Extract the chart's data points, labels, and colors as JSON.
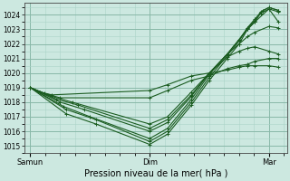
{
  "bg_color": "#cce8e0",
  "grid_major_color": "#88b8a8",
  "grid_minor_color": "#aad4c8",
  "line_color": "#1a5c20",
  "title": "Pression niveau de la mer( hPa )",
  "ylim": [
    1014.5,
    1024.8
  ],
  "yticks": [
    1015,
    1016,
    1017,
    1018,
    1019,
    1020,
    1021,
    1022,
    1023,
    1024
  ],
  "xlim": [
    -0.05,
    2.15
  ],
  "xlabels": [
    "Samun",
    "Dim",
    "Mar"
  ],
  "xpositions": [
    0.0,
    1.0,
    2.0
  ],
  "lines": [
    {
      "x": [
        0.0,
        0.3,
        0.55,
        1.0,
        1.15,
        1.35,
        1.5,
        1.65,
        1.75,
        1.82,
        1.88,
        1.93,
        2.0,
        2.08
      ],
      "y": [
        1019.0,
        1017.2,
        1016.5,
        1015.1,
        1015.8,
        1017.8,
        1019.5,
        1021.0,
        1022.0,
        1023.0,
        1023.5,
        1024.1,
        1024.4,
        1024.2
      ]
    },
    {
      "x": [
        0.0,
        0.3,
        0.55,
        1.0,
        1.15,
        1.35,
        1.5,
        1.65,
        1.75,
        1.82,
        1.88,
        1.93,
        2.0,
        2.08
      ],
      "y": [
        1019.0,
        1017.5,
        1016.8,
        1015.3,
        1016.0,
        1018.0,
        1019.7,
        1021.2,
        1022.2,
        1023.1,
        1023.6,
        1024.2,
        1024.5,
        1024.3
      ]
    },
    {
      "x": [
        0.0,
        0.28,
        0.5,
        1.0,
        1.15,
        1.35,
        1.5,
        1.65,
        1.75,
        1.82,
        1.88,
        1.95,
        2.0,
        2.08
      ],
      "y": [
        1019.0,
        1017.7,
        1017.0,
        1015.5,
        1016.2,
        1018.2,
        1019.9,
        1021.3,
        1022.3,
        1023.1,
        1023.7,
        1024.3,
        1024.5,
        1024.3
      ]
    },
    {
      "x": [
        0.0,
        0.25,
        0.45,
        1.0,
        1.15,
        1.35,
        1.5,
        1.65,
        1.75,
        1.82,
        1.88,
        2.0,
        2.08
      ],
      "y": [
        1019.0,
        1018.0,
        1017.5,
        1016.0,
        1016.6,
        1018.4,
        1020.0,
        1021.3,
        1022.3,
        1023.0,
        1023.5,
        1024.4,
        1023.5
      ]
    },
    {
      "x": [
        0.0,
        0.22,
        0.4,
        1.0,
        1.15,
        1.35,
        1.5,
        1.65,
        1.75,
        1.82,
        1.88,
        2.0,
        2.08
      ],
      "y": [
        1019.0,
        1018.2,
        1017.8,
        1016.2,
        1016.8,
        1018.5,
        1020.0,
        1021.3,
        1022.0,
        1022.5,
        1022.8,
        1023.2,
        1023.1
      ]
    },
    {
      "x": [
        0.0,
        0.18,
        0.35,
        1.0,
        1.15,
        1.35,
        1.5,
        1.65,
        1.75,
        1.82,
        1.88,
        2.0,
        2.08
      ],
      "y": [
        1019.0,
        1018.4,
        1018.0,
        1016.5,
        1017.0,
        1018.7,
        1020.0,
        1021.1,
        1021.5,
        1021.7,
        1021.8,
        1021.5,
        1021.3
      ]
    },
    {
      "x": [
        0.0,
        0.12,
        0.25,
        1.0,
        1.15,
        1.35,
        1.5,
        1.65,
        1.75,
        1.82,
        1.88,
        2.0,
        2.08
      ],
      "y": [
        1019.0,
        1018.6,
        1018.3,
        1018.3,
        1018.8,
        1019.5,
        1019.8,
        1020.3,
        1020.5,
        1020.6,
        1020.8,
        1021.0,
        1021.0
      ]
    },
    {
      "x": [
        0.0,
        0.08,
        0.18,
        1.0,
        1.15,
        1.35,
        1.5,
        1.65,
        1.75,
        1.82,
        1.88,
        2.0,
        2.08
      ],
      "y": [
        1019.0,
        1018.7,
        1018.5,
        1018.8,
        1019.2,
        1019.8,
        1020.0,
        1020.2,
        1020.4,
        1020.5,
        1020.5,
        1020.5,
        1020.4
      ]
    }
  ]
}
